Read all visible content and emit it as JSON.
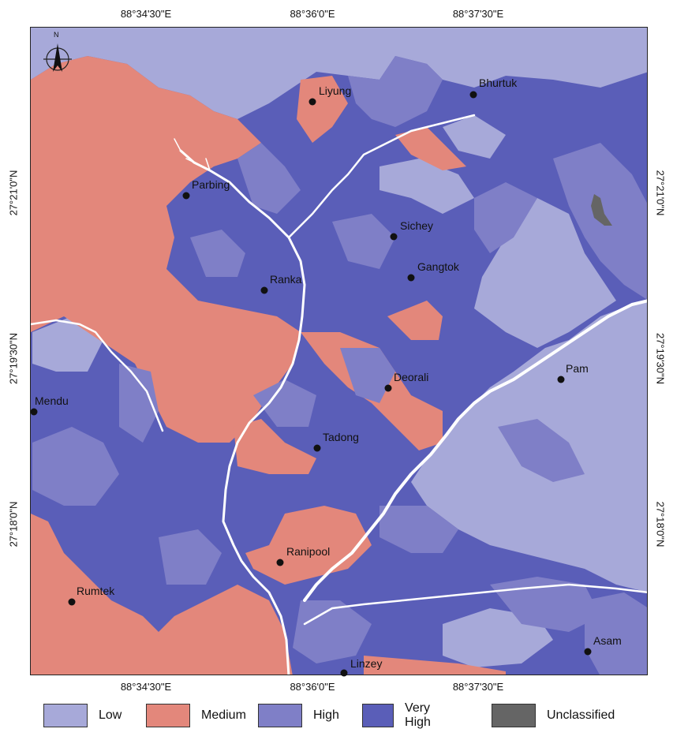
{
  "axes": {
    "top_ticks": [
      "88°34'30\"E",
      "88°36'0\"E",
      "88°37'30\"E"
    ],
    "bottom_ticks": [
      "88°34'30\"E",
      "88°36'0\"E",
      "88°37'30\"E"
    ],
    "left_ticks": [
      "27°21'0\"N",
      "27°19'30\"N",
      "27°18'0\"N"
    ],
    "right_ticks": [
      "27°21'0\"N",
      "27°19'30\"N",
      "27°18'0\"N"
    ]
  },
  "north_arrow": "N",
  "places": [
    {
      "name": "Liyung"
    },
    {
      "name": "Bhurtuk"
    },
    {
      "name": "Parbing"
    },
    {
      "name": "Sichey"
    },
    {
      "name": "Gangtok"
    },
    {
      "name": "Ranka"
    },
    {
      "name": "Pam"
    },
    {
      "name": "Deorali"
    },
    {
      "name": "Mendu"
    },
    {
      "name": "Tadong"
    },
    {
      "name": "Ranipool"
    },
    {
      "name": "Rumtek"
    },
    {
      "name": "Asam"
    },
    {
      "name": "Linzey"
    }
  ],
  "legend": [
    {
      "label": "Low",
      "color": "#a7a9d9"
    },
    {
      "label": "Medium",
      "color": "#e3877b"
    },
    {
      "label": "High",
      "color": "#7f7fc7"
    },
    {
      "label": "Very High",
      "color": "#5a5eb8"
    },
    {
      "label": "Unclassified",
      "color": "#656565"
    }
  ]
}
